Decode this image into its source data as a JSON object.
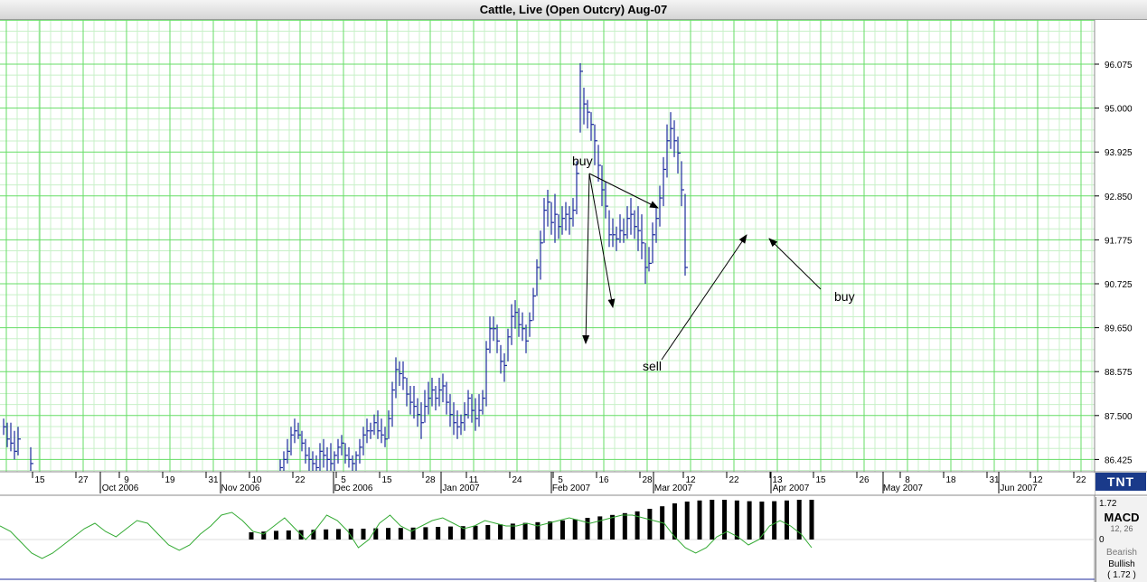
{
  "window": {
    "title": "Cattle, Live (Open Outcry) Aug-07"
  },
  "brand": {
    "logo_text": "TNT"
  },
  "colors": {
    "grid_major": "#66dd66",
    "grid_minor": "#c8f0c8",
    "price_bar": "#1c2a9c",
    "macd_line": "#33aa33",
    "histogram": "#000000",
    "annotation": "#000000"
  },
  "chart_data": {
    "type": "ohlc",
    "title": "Cattle, Live (Open Outcry) Aug-07",
    "grid": true,
    "y_ticks": [
      "96.075",
      "95.000",
      "93.925",
      "92.850",
      "91.775",
      "90.725",
      "89.650",
      "88.575",
      "87.500",
      "86.425"
    ],
    "ylim": [
      86.0,
      97.0
    ],
    "x_day_ticks": [
      "15",
      "27",
      "9",
      "19",
      "31",
      "10",
      "22",
      "5",
      "15",
      "28",
      "11",
      "24",
      "5",
      "16",
      "28",
      "12",
      "22",
      "13",
      "15",
      "26",
      "8",
      "18",
      "31",
      "12",
      "22"
    ],
    "x_month_labels": [
      "Oct 2006",
      "Nov 2006",
      "Dec 2006",
      "Jan 2007",
      "Feb 2007",
      "Mar 2007",
      "Apr 2007",
      "May 2007",
      "Jun 2007"
    ],
    "series": [
      {
        "values": [
          [
            87.4,
            87.0,
            87.2
          ],
          [
            87.3,
            86.7,
            86.9
          ],
          [
            87.3,
            86.6,
            86.8
          ],
          [
            87.1,
            86.4,
            86.6
          ],
          [
            87.2,
            86.5,
            86.9
          ],
          [
            86.7,
            86.1,
            86.3
          ],
          [
            86.4,
            86.0,
            86.2
          ],
          [
            86.6,
            86.1,
            86.4
          ],
          [
            86.9,
            86.3,
            86.6
          ],
          [
            87.2,
            86.5,
            87.0
          ],
          [
            87.4,
            86.8,
            87.1
          ],
          [
            87.3,
            86.9,
            87.0
          ],
          [
            87.1,
            86.6,
            86.8
          ],
          [
            86.9,
            86.3,
            86.5
          ],
          [
            86.7,
            86.1,
            86.4
          ],
          [
            86.6,
            86.0,
            86.3
          ],
          [
            86.5,
            86.0,
            86.2
          ],
          [
            86.8,
            86.1,
            86.6
          ],
          [
            86.9,
            86.2,
            86.5
          ],
          [
            86.7,
            86.1,
            86.4
          ],
          [
            86.8,
            86.0,
            86.3
          ],
          [
            86.6,
            86.1,
            86.5
          ],
          [
            86.9,
            86.3,
            86.7
          ],
          [
            87.0,
            86.5,
            86.8
          ],
          [
            86.8,
            86.3,
            86.5
          ],
          [
            86.7,
            86.2,
            86.4
          ],
          [
            86.5,
            86.0,
            86.3
          ],
          [
            86.6,
            86.1,
            86.5
          ],
          [
            86.9,
            86.3,
            86.7
          ],
          [
            87.2,
            86.5,
            87.0
          ],
          [
            87.4,
            86.8,
            87.1
          ],
          [
            87.3,
            86.9,
            87.1
          ],
          [
            87.5,
            87.0,
            87.3
          ],
          [
            87.6,
            86.9,
            87.1
          ],
          [
            87.4,
            86.8,
            87.0
          ],
          [
            87.2,
            86.7,
            86.9
          ],
          [
            87.6,
            86.9,
            87.4
          ],
          [
            88.3,
            87.2,
            88.1
          ],
          [
            88.9,
            87.9,
            88.6
          ],
          [
            88.8,
            88.2,
            88.5
          ],
          [
            88.8,
            88.1,
            88.4
          ],
          [
            88.4,
            87.7,
            88.0
          ],
          [
            88.2,
            87.5,
            87.8
          ],
          [
            88.2,
            87.4,
            87.7
          ],
          [
            87.9,
            87.2,
            87.5
          ],
          [
            87.8,
            86.9,
            87.3
          ],
          [
            88.1,
            87.3,
            87.7
          ],
          [
            88.3,
            87.5,
            87.9
          ],
          [
            88.4,
            87.7,
            88.1
          ],
          [
            88.2,
            87.6,
            87.9
          ],
          [
            88.4,
            87.7,
            88.1
          ],
          [
            88.5,
            87.8,
            88.2
          ],
          [
            88.3,
            87.5,
            87.8
          ],
          [
            88.0,
            87.2,
            87.5
          ],
          [
            87.8,
            87.0,
            87.3
          ],
          [
            87.6,
            86.9,
            87.2
          ],
          [
            87.5,
            87.0,
            87.3
          ],
          [
            87.8,
            87.1,
            87.5
          ],
          [
            88.1,
            87.4,
            87.9
          ],
          [
            88.0,
            87.3,
            87.6
          ],
          [
            87.9,
            87.1,
            87.4
          ],
          [
            88.0,
            87.2,
            87.6
          ],
          [
            88.1,
            87.5,
            87.9
          ],
          [
            89.3,
            87.7,
            89.1
          ],
          [
            89.9,
            89.0,
            89.6
          ],
          [
            89.9,
            89.3,
            89.6
          ],
          [
            89.7,
            89.0,
            89.3
          ],
          [
            89.2,
            88.5,
            88.8
          ],
          [
            89.0,
            88.3,
            88.7
          ],
          [
            89.6,
            88.8,
            89.4
          ],
          [
            90.2,
            89.2,
            89.9
          ],
          [
            90.3,
            89.6,
            90.0
          ],
          [
            90.1,
            89.4,
            89.7
          ],
          [
            90.0,
            89.3,
            89.6
          ],
          [
            89.7,
            89.0,
            89.3
          ],
          [
            90.0,
            89.4,
            89.8
          ],
          [
            90.6,
            89.8,
            90.4
          ],
          [
            91.3,
            90.4,
            91.1
          ],
          [
            92.0,
            90.8,
            91.7
          ],
          [
            92.8,
            91.7,
            92.5
          ],
          [
            93.0,
            92.1,
            92.7
          ],
          [
            92.7,
            91.9,
            92.2
          ],
          [
            92.9,
            91.7,
            92.4
          ],
          [
            92.4,
            91.8,
            92.1
          ],
          [
            92.6,
            91.9,
            92.3
          ],
          [
            92.7,
            92.0,
            92.4
          ],
          [
            92.6,
            91.9,
            92.3
          ],
          [
            92.8,
            92.1,
            92.5
          ],
          [
            93.7,
            92.4,
            93.4
          ],
          [
            96.1,
            94.4,
            95.9
          ],
          [
            95.5,
            94.6,
            95.1
          ],
          [
            95.2,
            94.5,
            94.9
          ],
          [
            94.9,
            94.2,
            94.6
          ],
          [
            94.6,
            93.6,
            94.2
          ],
          [
            94.1,
            93.2,
            93.6
          ],
          [
            93.6,
            92.6,
            93.0
          ],
          [
            93.2,
            92.3,
            92.6
          ],
          [
            92.5,
            91.6,
            91.9
          ],
          [
            92.3,
            91.6,
            91.9
          ],
          [
            92.1,
            91.5,
            91.8
          ],
          [
            92.4,
            91.7,
            92.0
          ],
          [
            92.3,
            91.7,
            91.9
          ],
          [
            92.6,
            91.8,
            92.3
          ],
          [
            92.8,
            91.9,
            92.4
          ],
          [
            92.5,
            91.8,
            92.1
          ],
          [
            92.6,
            91.5,
            92.0
          ],
          [
            92.4,
            91.3,
            91.7
          ],
          [
            91.7,
            90.7,
            91.1
          ],
          [
            91.6,
            91.0,
            91.2
          ],
          [
            92.2,
            91.2,
            91.9
          ],
          [
            92.6,
            91.7,
            92.3
          ],
          [
            93.1,
            92.1,
            92.8
          ],
          [
            93.8,
            92.6,
            93.5
          ],
          [
            94.6,
            93.3,
            94.2
          ],
          [
            94.9,
            94.0,
            94.5
          ],
          [
            94.7,
            93.8,
            94.2
          ],
          [
            94.3,
            93.4,
            93.9
          ],
          [
            93.7,
            92.6,
            93.0
          ],
          [
            92.9,
            90.9,
            91.1
          ]
        ]
      }
    ]
  },
  "annotations": [
    {
      "text": "buy"
    },
    {
      "text": "sell"
    },
    {
      "text": "buy"
    }
  ],
  "macd_panel": {
    "name": "MACD",
    "value": "1.72",
    "value_paren": "( 1.72 )",
    "params": "12, 26",
    "zero_label": "0",
    "bearish": "Bearish",
    "bullish": "Bullish",
    "histogram": [
      0.2,
      0.22,
      0.24,
      0.25,
      0.26,
      0.27,
      0.28,
      0.29,
      0.3,
      0.3,
      0.31,
      0.32,
      0.32,
      0.33,
      0.34,
      0.35,
      0.36,
      0.37,
      0.38,
      0.4,
      0.42,
      0.44,
      0.46,
      0.48,
      0.5,
      0.53,
      0.56,
      0.6,
      0.64,
      0.68,
      0.73,
      0.78,
      0.85,
      0.92,
      1.0,
      1.05,
      1.08,
      1.1,
      1.1,
      1.08,
      1.06,
      1.05,
      1.06,
      1.08,
      1.1,
      1.1
    ],
    "signal": [
      0.5,
      0.3,
      -0.1,
      -0.5,
      -0.7,
      -0.5,
      -0.2,
      0.1,
      0.4,
      0.6,
      0.3,
      0.1,
      0.4,
      0.7,
      0.6,
      0.2,
      -0.2,
      -0.4,
      -0.2,
      0.2,
      0.5,
      0.9,
      1.0,
      0.7,
      0.3,
      0.2,
      0.5,
      0.8,
      0.4,
      0.0,
      0.4,
      0.9,
      0.7,
      0.3,
      -0.3,
      0.0,
      0.6,
      0.9,
      0.5,
      0.3,
      0.5,
      0.7,
      0.8,
      0.6,
      0.4,
      0.5,
      0.7,
      0.6,
      0.5,
      0.5,
      0.6,
      0.5,
      0.6,
      0.7,
      0.8,
      0.7,
      0.6,
      0.7,
      0.8,
      0.9,
      0.9,
      0.8,
      0.7,
      0.6,
      0.1,
      -0.3,
      -0.5,
      -0.3,
      0.1,
      0.3,
      0.1,
      -0.2,
      0.0,
      0.5,
      0.7,
      0.5,
      0.2,
      -0.3
    ]
  }
}
